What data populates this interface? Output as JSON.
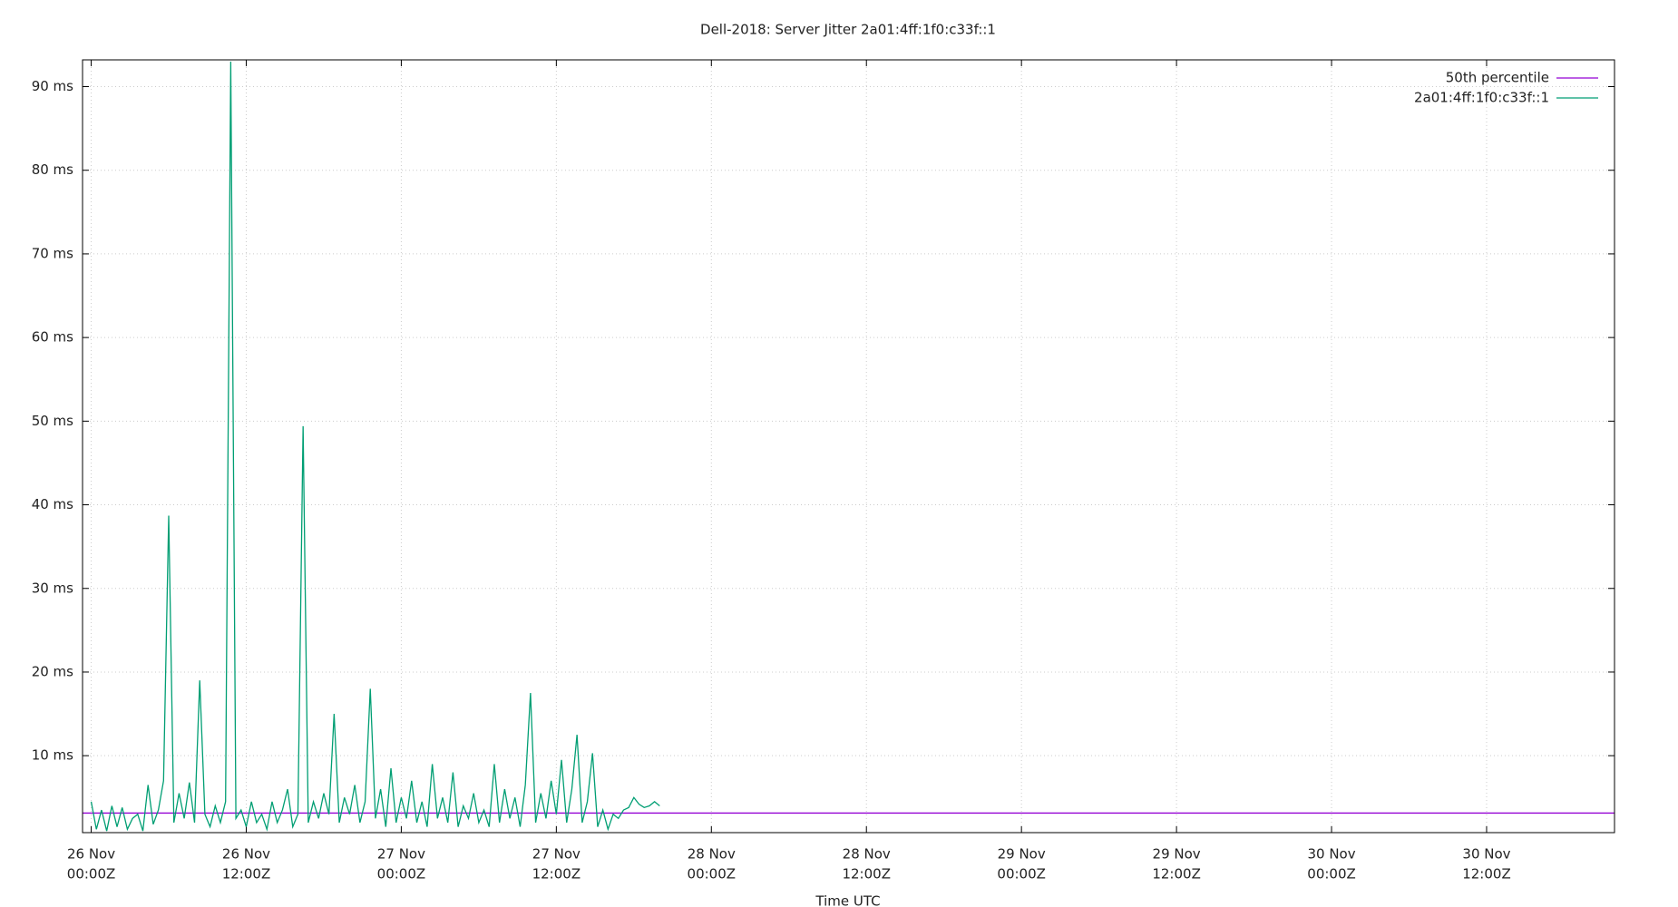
{
  "chart_data": {
    "type": "line",
    "title": "Dell-2018: Server Jitter 2a01:4ff:1f0:c33f::1",
    "x_label": "Time UTC",
    "xlim": [
      -0.67,
      117.9
    ],
    "ylim": [
      0.8,
      93.2
    ],
    "grid": true,
    "legend": "upper right",
    "xticks": [
      {
        "value": 0,
        "label": [
          "26 Nov",
          "00:00Z"
        ]
      },
      {
        "value": 12,
        "label": [
          "26 Nov",
          "12:00Z"
        ]
      },
      {
        "value": 24,
        "label": [
          "27 Nov",
          "00:00Z"
        ]
      },
      {
        "value": 36,
        "label": [
          "27 Nov",
          "12:00Z"
        ]
      },
      {
        "value": 48,
        "label": [
          "28 Nov",
          "00:00Z"
        ]
      },
      {
        "value": 60,
        "label": [
          "28 Nov",
          "12:00Z"
        ]
      },
      {
        "value": 72,
        "label": [
          "29 Nov",
          "00:00Z"
        ]
      },
      {
        "value": 84,
        "label": [
          "29 Nov",
          "12:00Z"
        ]
      },
      {
        "value": 96,
        "label": [
          "30 Nov",
          "00:00Z"
        ]
      },
      {
        "value": 108,
        "label": [
          "30 Nov",
          "12:00Z"
        ]
      }
    ],
    "yticks": [
      {
        "value": 10,
        "label": "10 ms"
      },
      {
        "value": 20,
        "label": "20 ms"
      },
      {
        "value": 30,
        "label": "30 ms"
      },
      {
        "value": 40,
        "label": "40 ms"
      },
      {
        "value": 50,
        "label": "50 ms"
      },
      {
        "value": 60,
        "label": "60 ms"
      },
      {
        "value": 70,
        "label": "70 ms"
      },
      {
        "value": 80,
        "label": "80 ms"
      },
      {
        "value": 90,
        "label": "90 ms"
      }
    ],
    "series": [
      {
        "name": "50th percentile",
        "color": "#9400d3",
        "x": [
          -0.67,
          117.9
        ],
        "values": [
          3.14,
          3.14
        ]
      },
      {
        "name": "2a01:4ff:1f0:c33f::1",
        "color": "#009e73",
        "x": [
          0,
          0.4,
          0.8,
          1.2,
          1.6,
          2.0,
          2.4,
          2.8,
          3.2,
          3.6,
          4.0,
          4.4,
          4.8,
          5.2,
          5.6,
          6.0,
          6.4,
          6.8,
          7.2,
          7.6,
          8.0,
          8.4,
          8.8,
          9.2,
          9.6,
          10.0,
          10.4,
          10.8,
          11.2,
          11.6,
          12.0,
          12.4,
          12.8,
          13.2,
          13.6,
          14.0,
          14.4,
          14.8,
          15.2,
          15.6,
          16.0,
          16.4,
          16.8,
          17.2,
          17.6,
          18.0,
          18.4,
          18.8,
          19.2,
          19.6,
          20.0,
          20.4,
          20.8,
          21.2,
          21.6,
          22.0,
          22.4,
          22.8,
          23.2,
          23.6,
          24.0,
          24.4,
          24.8,
          25.2,
          25.6,
          26.0,
          26.4,
          26.8,
          27.2,
          27.6,
          28.0,
          28.4,
          28.8,
          29.2,
          29.6,
          30.0,
          30.4,
          30.8,
          31.2,
          31.6,
          32.0,
          32.4,
          32.8,
          33.2,
          33.6,
          34.0,
          34.4,
          34.8,
          35.2,
          35.6,
          36.0,
          36.4,
          36.8,
          37.2,
          37.6,
          38.0,
          38.4,
          38.8,
          39.2,
          39.6,
          40.0,
          40.4,
          40.8,
          41.2,
          41.6,
          42.0,
          42.4,
          42.8,
          43.2,
          43.6,
          44.0
        ],
        "values": [
          4.5,
          1.2,
          3.5,
          1.0,
          4.0,
          1.5,
          3.8,
          1.2,
          2.5,
          3.0,
          1.0,
          6.5,
          1.8,
          3.5,
          7.0,
          38.7,
          2.0,
          5.5,
          2.5,
          6.8,
          2.0,
          19.0,
          3.0,
          1.5,
          4.0,
          2.0,
          4.5,
          93.0,
          2.5,
          3.5,
          1.5,
          4.5,
          2.0,
          3.0,
          1.2,
          4.5,
          2.0,
          3.5,
          6.0,
          1.5,
          3.0,
          49.4,
          2.0,
          4.5,
          2.5,
          5.5,
          3.0,
          15.0,
          2.0,
          5.0,
          3.0,
          6.5,
          2.0,
          4.5,
          18.0,
          2.5,
          6.0,
          1.5,
          8.5,
          2.0,
          5.0,
          2.5,
          7.0,
          2.0,
          4.5,
          1.5,
          9.0,
          2.5,
          5.0,
          2.0,
          8.0,
          1.5,
          4.0,
          2.5,
          5.5,
          2.0,
          3.5,
          1.5,
          9.0,
          2.0,
          6.0,
          2.5,
          5.0,
          1.5,
          6.5,
          17.5,
          2.0,
          5.5,
          2.5,
          7.0,
          3.0,
          9.5,
          2.0,
          6.0,
          12.5,
          2.0,
          4.5,
          10.3,
          1.5,
          3.5,
          1.2,
          3.0,
          2.5,
          3.5,
          3.8,
          5.0,
          4.2,
          3.8,
          4.0,
          4.5,
          4.0
        ]
      }
    ]
  }
}
